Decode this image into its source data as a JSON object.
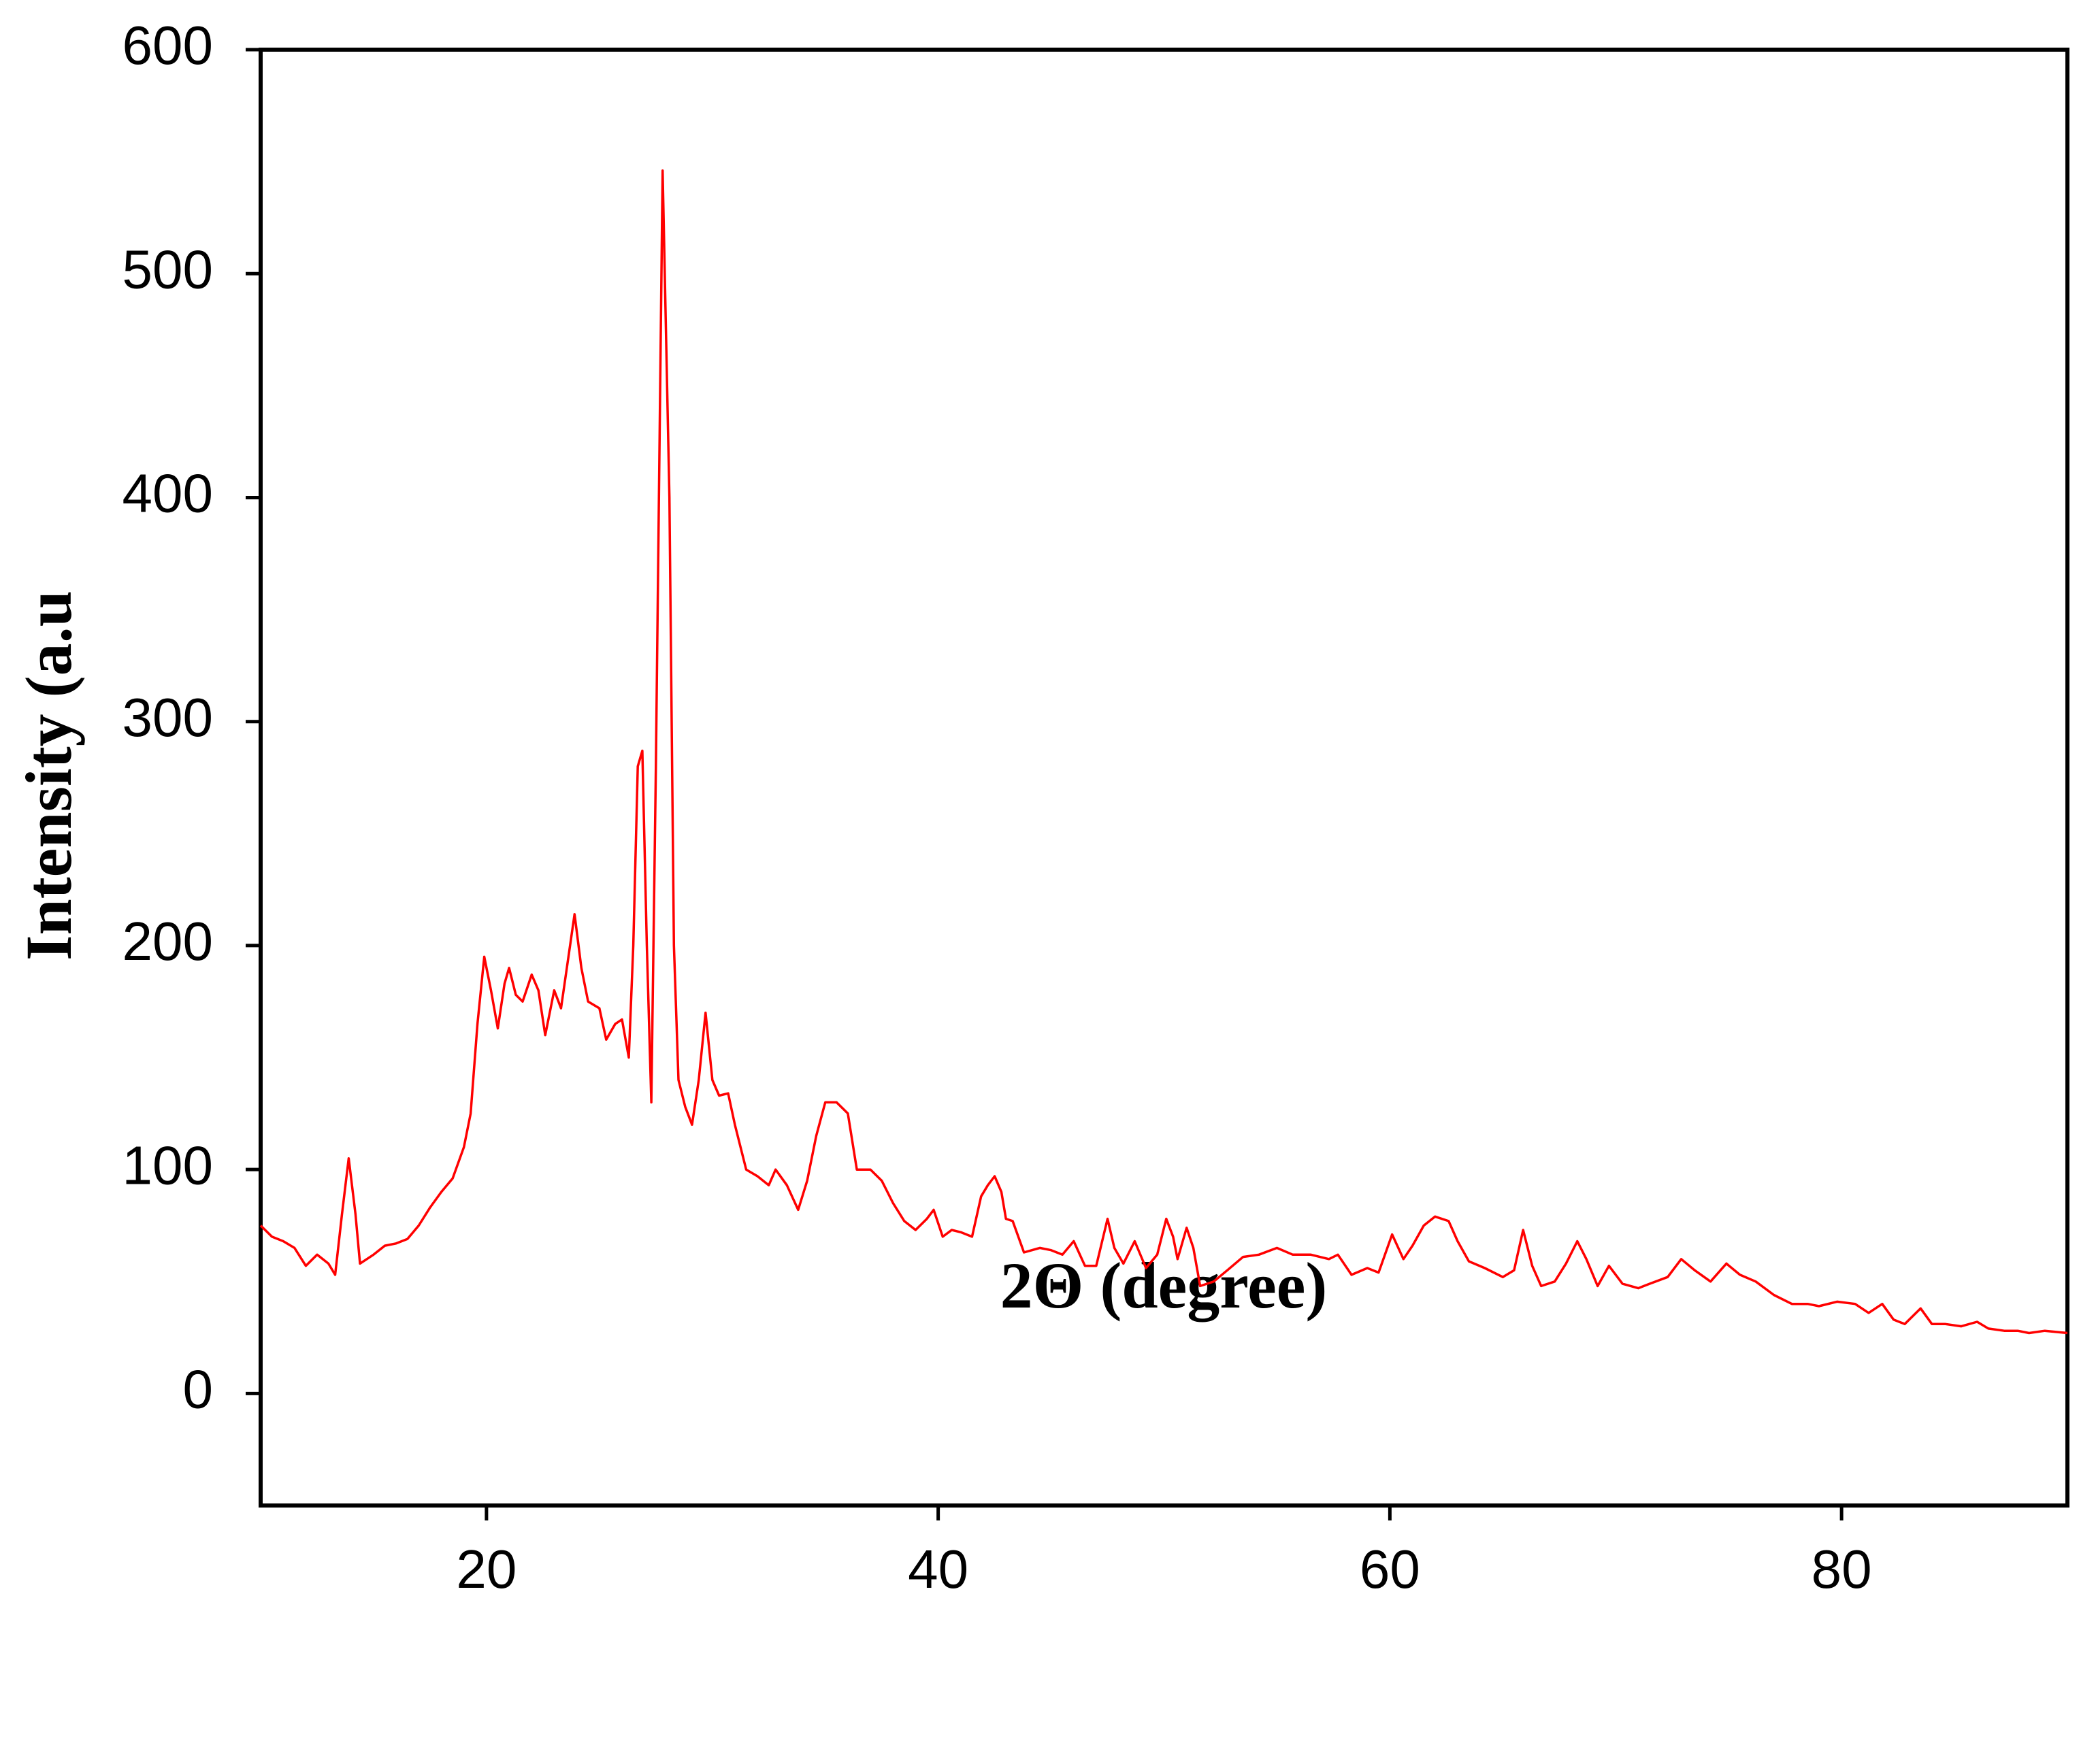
{
  "chart_data": {
    "type": "line",
    "x_label": "2Θ (degree)",
    "y_label": "Intensity (a.u",
    "x": [
      10,
      10.5,
      11,
      11.5,
      12,
      12.5,
      13,
      13.3,
      13.6,
      13.9,
      14.2,
      14.4,
      15,
      15.5,
      16,
      16.5,
      17,
      17.5,
      18,
      18.5,
      19,
      19.3,
      19.6,
      19.9,
      20.2,
      20.5,
      20.8,
      21,
      21.3,
      21.6,
      22,
      22.3,
      22.6,
      23,
      23.3,
      23.7,
      23.9,
      24.2,
      24.5,
      25,
      25.3,
      25.7,
      26,
      26.3,
      26.5,
      26.7,
      26.9,
      27.1,
      27.3,
      27.5,
      27.8,
      28.1,
      28.3,
      28.5,
      28.8,
      29.1,
      29.4,
      29.7,
      30,
      30.3,
      30.7,
      31,
      31.5,
      32,
      32.5,
      32.8,
      33.3,
      33.8,
      34.2,
      34.6,
      35,
      35.5,
      36,
      36.4,
      37,
      37.5,
      38,
      38.5,
      39,
      39.5,
      39.8,
      40.2,
      40.6,
      41,
      41.5,
      41.9,
      42.2,
      42.5,
      42.8,
      43,
      43.3,
      43.8,
      44.5,
      45,
      45.5,
      46,
      46.5,
      47,
      47.5,
      47.8,
      48.2,
      48.7,
      49.2,
      49.7,
      50.1,
      50.4,
      50.6,
      51,
      51.3,
      51.6,
      52.2,
      52.8,
      53.5,
      54.2,
      55,
      55.7,
      56.5,
      57.3,
      57.7,
      58.3,
      59,
      59.5,
      60.1,
      60.6,
      61,
      61.5,
      62,
      62.6,
      63,
      63.5,
      64.2,
      65,
      65.5,
      65.9,
      66.3,
      66.7,
      67.3,
      67.8,
      68.3,
      68.7,
      69.2,
      69.7,
      70.3,
      71,
      71.5,
      72.3,
      72.9,
      73.5,
      74.2,
      74.9,
      75.5,
      76.2,
      77,
      77.8,
      78.5,
      79,
      79.8,
      80.6,
      81.2,
      81.8,
      82.3,
      82.8,
      83.5,
      84,
      84.6,
      85.3,
      86,
      86.5,
      87.2,
      87.8,
      88.3,
      89,
      90
    ],
    "series": [
      {
        "color": "#ff0000",
        "values": [
          75,
          70,
          68,
          65,
          57,
          62,
          58,
          53,
          80,
          105,
          80,
          58,
          62,
          66,
          67,
          69,
          75,
          83,
          90,
          96,
          110,
          125,
          165,
          195,
          180,
          163,
          183,
          190,
          178,
          175,
          187,
          180,
          160,
          180,
          172,
          200,
          214,
          190,
          175,
          172,
          158,
          165,
          167,
          150,
          200,
          280,
          287,
          200,
          130,
          280,
          546,
          400,
          200,
          140,
          128,
          120,
          140,
          170,
          140,
          133,
          134,
          120,
          100,
          97,
          93,
          100,
          93,
          82,
          95,
          115,
          130,
          130,
          125,
          100,
          100,
          95,
          85,
          77,
          73,
          78,
          82,
          70,
          73,
          72,
          70,
          88,
          93,
          97,
          90,
          78,
          77,
          63,
          65,
          64,
          62,
          68,
          57,
          57,
          78,
          65,
          58,
          68,
          56,
          62,
          78,
          70,
          60,
          74,
          65,
          48,
          50,
          55,
          61,
          62,
          65,
          62,
          62,
          60,
          62,
          53,
          56,
          54,
          71,
          60,
          66,
          75,
          79,
          77,
          68,
          59,
          56,
          52,
          55,
          73,
          57,
          48,
          50,
          58,
          68,
          60,
          48,
          57,
          49,
          47,
          49,
          52,
          60,
          55,
          50,
          58,
          53,
          50,
          44,
          40,
          40,
          39,
          41,
          40,
          36,
          40,
          33,
          31,
          38,
          31,
          31,
          30,
          32,
          29,
          28,
          28,
          27,
          28,
          27
        ]
      }
    ],
    "xlim": [
      10,
      90
    ],
    "ylim": [
      -50,
      600
    ],
    "xticks": [
      20,
      40,
      60,
      80
    ],
    "yticks": [
      0,
      100,
      200,
      300,
      400,
      500,
      600
    ]
  }
}
